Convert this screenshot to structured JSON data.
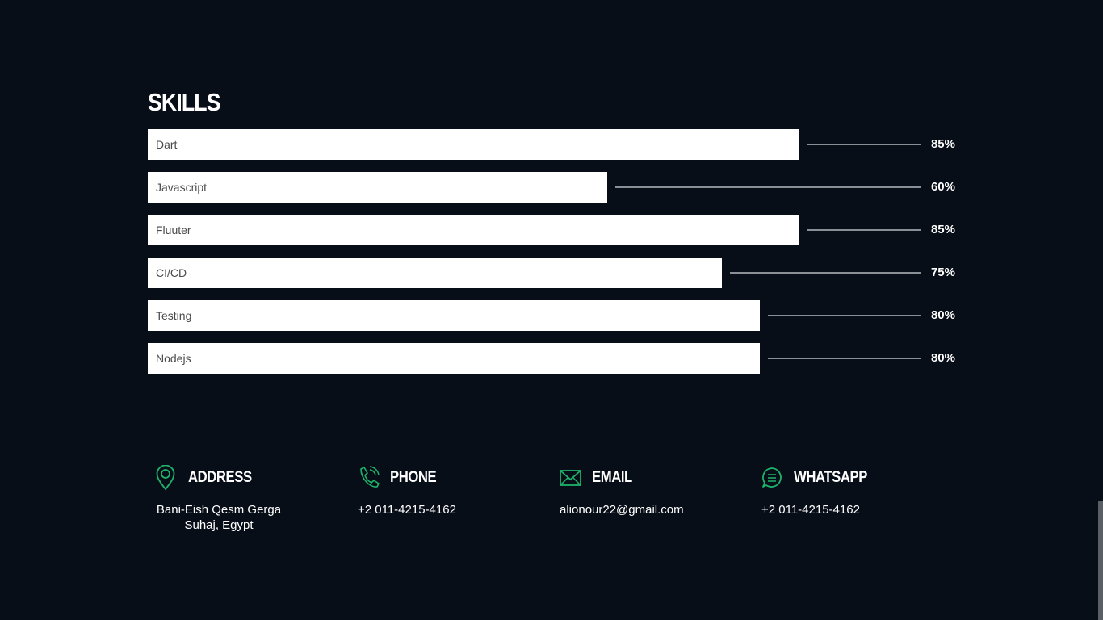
{
  "skills": {
    "title": "SKILLS",
    "items": [
      {
        "name": "Dart",
        "value": 85,
        "label": "85%"
      },
      {
        "name": "Javascript",
        "value": 60,
        "label": "60%"
      },
      {
        "name": "Fluuter",
        "value": 85,
        "label": "85%"
      },
      {
        "name": "CI/CD",
        "value": 75,
        "label": "75%"
      },
      {
        "name": "Testing",
        "value": 80,
        "label": "80%"
      },
      {
        "name": "Nodejs",
        "value": 80,
        "label": "80%"
      }
    ]
  },
  "contacts": {
    "icon_color": "#1db36b",
    "items": [
      {
        "icon": "location-pin-icon",
        "title": "ADDRESS",
        "value_line1": "Bani-Eish Qesm Gerga",
        "value_line2": "Suhaj, Egypt"
      },
      {
        "icon": "phone-icon",
        "title": "PHONE",
        "value_line1": "+2 011-4215-4162"
      },
      {
        "icon": "mail-icon",
        "title": "EMAIL",
        "value_line1": "alionour22@gmail.com"
      },
      {
        "icon": "chat-icon",
        "title": "WHATSAPP",
        "value_line1": "+2 011-4215-4162"
      }
    ]
  }
}
